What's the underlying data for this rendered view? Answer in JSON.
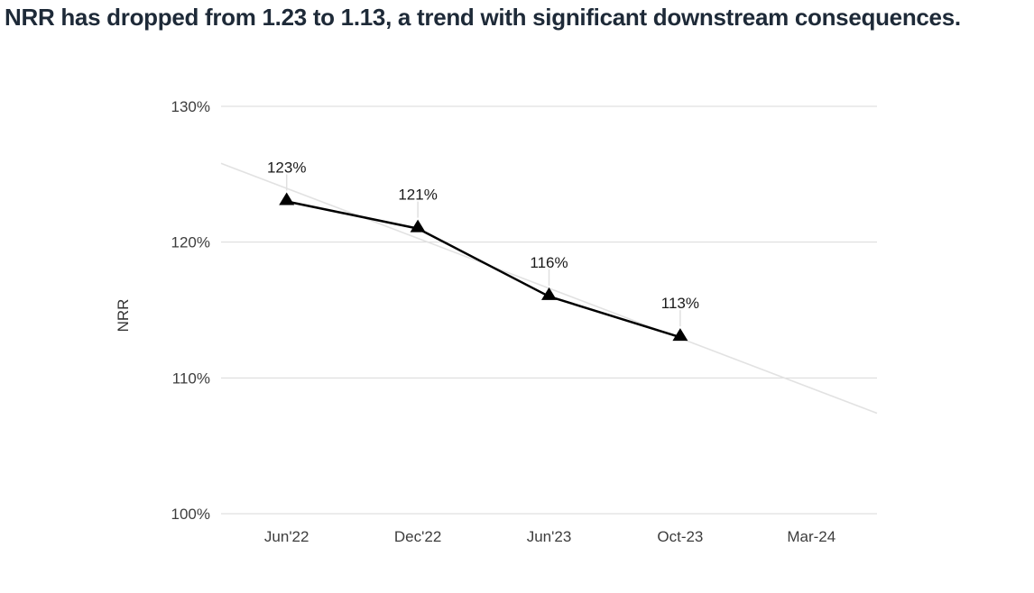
{
  "title": {
    "text": "NRR has dropped from 1.23 to 1.13, a trend with significant downstream consequences."
  },
  "chart_data": {
    "type": "line",
    "title": "NRR has dropped from 1.23 to 1.13, a trend with significant downstream consequences.",
    "xlabel": "",
    "ylabel": "NRR",
    "categories": [
      "Jun'22",
      "Dec'22",
      "Jun'23",
      "Oct-23",
      "Mar-24"
    ],
    "series": [
      {
        "name": "NRR",
        "values": [
          123,
          121,
          116,
          113,
          null
        ],
        "labels": [
          "123%",
          "121%",
          "116%",
          "113%"
        ]
      }
    ],
    "trendline": {
      "type": "linear",
      "start_value": 125.8,
      "end_value": 107.4
    },
    "ylim": [
      100,
      130
    ],
    "yticks": [
      {
        "value": 130,
        "label": "130%"
      },
      {
        "value": 120,
        "label": "120%"
      },
      {
        "value": 110,
        "label": "110%"
      },
      {
        "value": 100,
        "label": "100%"
      }
    ],
    "grid": true,
    "legend_position": "none",
    "marker": "triangle-up"
  },
  "colors": {
    "background": "#ffffff",
    "title": "#1e2a38",
    "series_line": "#000000",
    "marker": "#000000",
    "trendline": "#e2e2e2",
    "gridline": "#d9d9d9",
    "leader_line": "#e0e0e0",
    "axis_text": "#3d3d3d",
    "data_label": "#1a1a1a"
  }
}
